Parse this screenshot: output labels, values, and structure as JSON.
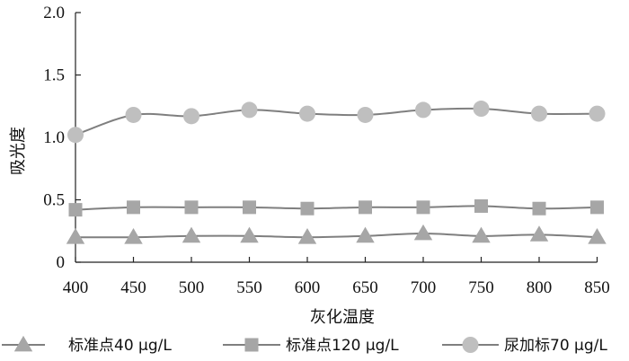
{
  "chart_data": {
    "type": "line",
    "xlabel": "灰化温度",
    "ylabel": "吸光度",
    "x": [
      400,
      450,
      500,
      550,
      600,
      650,
      700,
      750,
      800,
      850
    ],
    "x_tick_labels": [
      "400",
      "450",
      "500",
      "550",
      "600",
      "650",
      "700",
      "750",
      "800",
      "850"
    ],
    "ylim": [
      0,
      2.0
    ],
    "y_tick_labels": [
      "0",
      "0.5",
      "1.0",
      "1.5",
      "2.0"
    ],
    "y_ticks": [
      0,
      0.5,
      1.0,
      1.5,
      2.0
    ],
    "grid": false,
    "legend_position": "bottom",
    "series": [
      {
        "name": "标准点40 μg/L",
        "marker": "triangle",
        "color": "#a6a6a6",
        "values": [
          0.2,
          0.2,
          0.21,
          0.21,
          0.2,
          0.21,
          0.23,
          0.21,
          0.22,
          0.2
        ]
      },
      {
        "name": "标准点120 μg/L",
        "marker": "square",
        "color": "#a6a6a6",
        "values": [
          0.42,
          0.44,
          0.44,
          0.44,
          0.43,
          0.44,
          0.44,
          0.45,
          0.43,
          0.44
        ]
      },
      {
        "name": "尿加标70 μg/L",
        "marker": "circle",
        "color": "#bfbfbf",
        "values": [
          1.02,
          1.18,
          1.17,
          1.22,
          1.19,
          1.18,
          1.22,
          1.23,
          1.19,
          1.19
        ]
      }
    ]
  }
}
